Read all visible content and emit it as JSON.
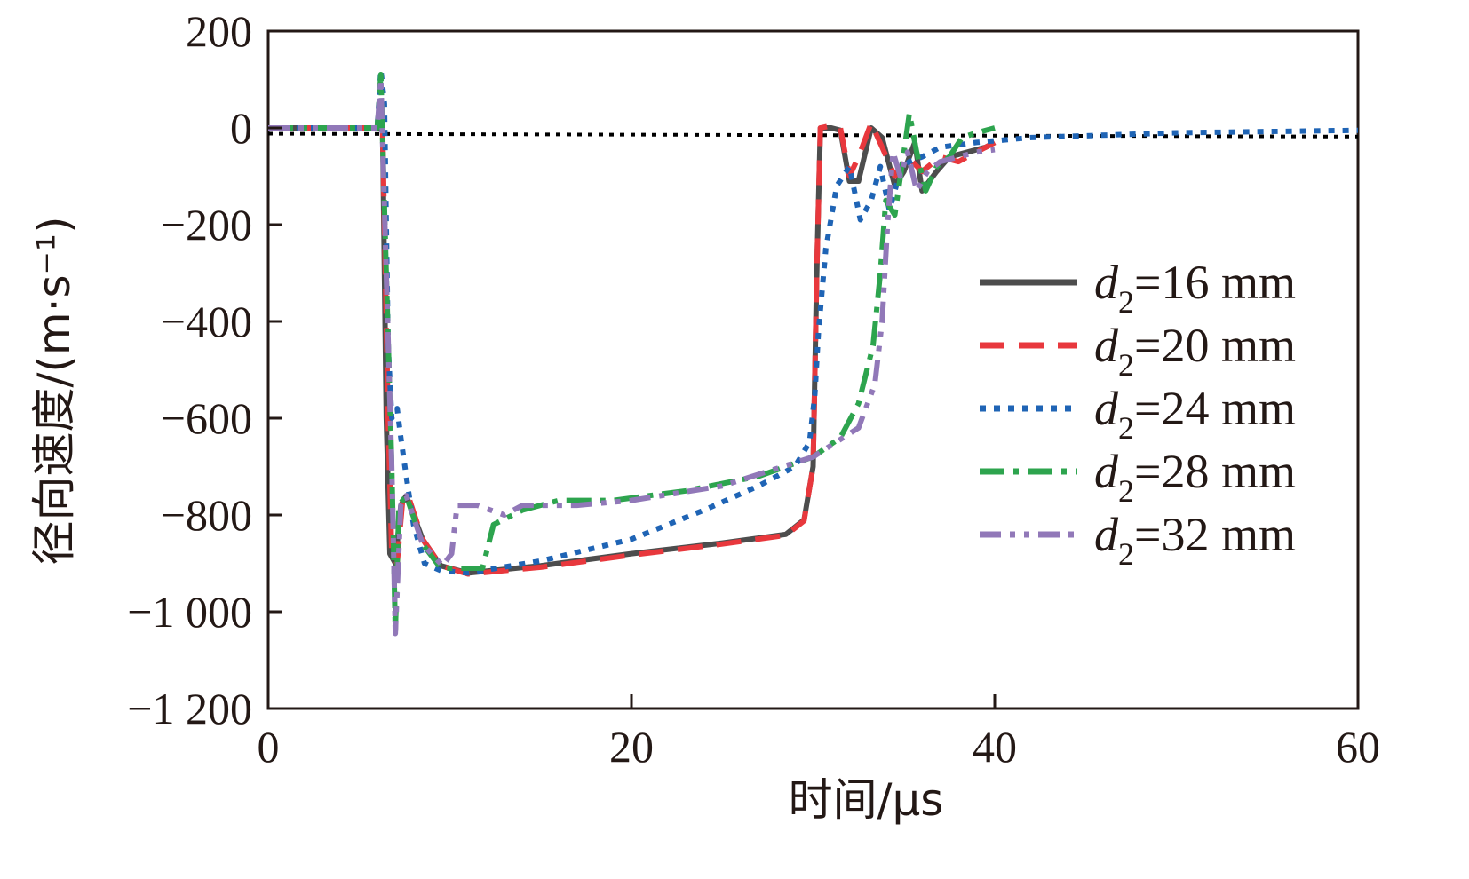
{
  "chart_data": {
    "type": "line",
    "xlabel": "时间/μs",
    "ylabel": "径向速度/(m·s⁻¹)",
    "xlim": [
      0,
      60
    ],
    "ylim": [
      -1200,
      200
    ],
    "xticks": [
      0,
      20,
      40,
      60
    ],
    "yticks": [
      200,
      0,
      -200,
      -400,
      -600,
      -800,
      -1000,
      -1200
    ],
    "xtick_labels": [
      "0",
      "20",
      "40",
      "60"
    ],
    "ytick_labels": [
      "200",
      "0",
      "−200",
      "−400",
      "−600",
      "−800",
      "−1 000",
      "−1 200"
    ],
    "grid": false,
    "legend_position": "right",
    "reference_line": {
      "style": "dotted",
      "color": "#000000",
      "y": [
        [
          0,
          -12
        ],
        [
          60,
          -18
        ]
      ]
    },
    "series": [
      {
        "name_var": "d",
        "name_sub": "2",
        "name_rest": "=16 mm",
        "color": "#4d4d4d",
        "dash": "solid",
        "points": [
          [
            0,
            0
          ],
          [
            6,
            0
          ],
          [
            6.3,
            -5
          ],
          [
            6.5,
            -600
          ],
          [
            6.7,
            -880
          ],
          [
            7,
            -900
          ],
          [
            7.3,
            -780
          ],
          [
            7.6,
            -760
          ],
          [
            8.5,
            -850
          ],
          [
            9.5,
            -905
          ],
          [
            11,
            -920
          ],
          [
            15,
            -905
          ],
          [
            20,
            -880
          ],
          [
            25,
            -858
          ],
          [
            28.5,
            -840
          ],
          [
            29.5,
            -810
          ],
          [
            30,
            -700
          ],
          [
            30.2,
            -300
          ],
          [
            30.4,
            0
          ],
          [
            31,
            0
          ],
          [
            31.5,
            -5
          ],
          [
            32,
            -110
          ],
          [
            32.5,
            -110
          ],
          [
            33.2,
            0
          ],
          [
            33.8,
            -20
          ],
          [
            34.5,
            -120
          ],
          [
            35,
            -90
          ],
          [
            35.6,
            -30
          ],
          [
            36,
            -130
          ],
          [
            36.8,
            -90
          ],
          [
            37.5,
            -60
          ],
          [
            38.5,
            -50
          ],
          [
            39.5,
            -40
          ],
          [
            40,
            -30
          ]
        ]
      },
      {
        "name_var": "d",
        "name_sub": "2",
        "name_rest": "=20 mm",
        "color": "#e8383d",
        "dash": "28,16",
        "points": [
          [
            0,
            0
          ],
          [
            6,
            0
          ],
          [
            6.3,
            -5
          ],
          [
            6.6,
            -600
          ],
          [
            6.8,
            -880
          ],
          [
            7.1,
            -900
          ],
          [
            7.4,
            -770
          ],
          [
            7.7,
            -760
          ],
          [
            8.5,
            -850
          ],
          [
            9.5,
            -905
          ],
          [
            11,
            -922
          ],
          [
            15,
            -908
          ],
          [
            20,
            -883
          ],
          [
            25,
            -860
          ],
          [
            28.5,
            -842
          ],
          [
            29.5,
            -812
          ],
          [
            30,
            -700
          ],
          [
            30.2,
            -300
          ],
          [
            30.4,
            0
          ],
          [
            31,
            5
          ],
          [
            31.5,
            0
          ],
          [
            32,
            -100
          ],
          [
            32.5,
            -60
          ],
          [
            33.2,
            10
          ],
          [
            33.8,
            -40
          ],
          [
            34.5,
            -100
          ],
          [
            35.2,
            -60
          ],
          [
            36,
            -90
          ],
          [
            37,
            -60
          ],
          [
            38,
            -70
          ],
          [
            39.5,
            -40
          ],
          [
            40,
            -30
          ]
        ]
      },
      {
        "name_var": "d",
        "name_sub": "2",
        "name_rest": "=24 mm",
        "color": "#1f64b5",
        "dash": "7,9",
        "points": [
          [
            0,
            0
          ],
          [
            6,
            0
          ],
          [
            6.2,
            120
          ],
          [
            6.4,
            50
          ],
          [
            6.6,
            -450
          ],
          [
            6.8,
            -600
          ],
          [
            7.1,
            -580
          ],
          [
            7.3,
            -640
          ],
          [
            7.6,
            -720
          ],
          [
            8,
            -820
          ],
          [
            8.6,
            -900
          ],
          [
            9.5,
            -915
          ],
          [
            11,
            -920
          ],
          [
            15,
            -895
          ],
          [
            20,
            -850
          ],
          [
            24,
            -790
          ],
          [
            27,
            -740
          ],
          [
            29,
            -700
          ],
          [
            29.8,
            -650
          ],
          [
            30.1,
            -550
          ],
          [
            30.3,
            -420
          ],
          [
            30.7,
            -250
          ],
          [
            31.3,
            -120
          ],
          [
            32,
            -80
          ],
          [
            32.6,
            -190
          ],
          [
            33.2,
            -150
          ],
          [
            33.7,
            -80
          ],
          [
            34.2,
            -170
          ],
          [
            34.8,
            -90
          ],
          [
            35.3,
            -70
          ],
          [
            36,
            -60
          ],
          [
            37,
            -40
          ],
          [
            39,
            -30
          ],
          [
            42,
            -20
          ],
          [
            50,
            -10
          ],
          [
            60,
            -5
          ]
        ]
      },
      {
        "name_var": "d",
        "name_sub": "2",
        "name_rest": "=28 mm",
        "color": "#2da44e",
        "dash": "28,10,6,10",
        "points": [
          [
            0,
            0
          ],
          [
            6,
            0
          ],
          [
            6.2,
            110
          ],
          [
            6.5,
            -300
          ],
          [
            6.8,
            -700
          ],
          [
            7,
            -1040
          ],
          [
            7.2,
            -780
          ],
          [
            7.6,
            -760
          ],
          [
            8.5,
            -860
          ],
          [
            9.5,
            -910
          ],
          [
            11.8,
            -910
          ],
          [
            12.4,
            -820
          ],
          [
            14,
            -790
          ],
          [
            16,
            -770
          ],
          [
            19,
            -770
          ],
          [
            23,
            -750
          ],
          [
            27,
            -720
          ],
          [
            30,
            -680
          ],
          [
            31.5,
            -640
          ],
          [
            32.5,
            -570
          ],
          [
            33.3,
            -450
          ],
          [
            33.7,
            -300
          ],
          [
            34,
            -150
          ],
          [
            34.5,
            -180
          ],
          [
            35,
            -50
          ],
          [
            35.3,
            30
          ],
          [
            35.7,
            -50
          ],
          [
            36.2,
            -130
          ],
          [
            36.8,
            -80
          ],
          [
            37.5,
            -60
          ],
          [
            38.2,
            -20
          ],
          [
            39,
            -10
          ],
          [
            40,
            0
          ]
        ]
      },
      {
        "name_var": "d",
        "name_sub": "2",
        "name_rest": "=32 mm",
        "color": "#9178b8",
        "dash": "24,10,6,10,6,10",
        "points": [
          [
            0,
            0
          ],
          [
            6,
            0
          ],
          [
            6.2,
            100
          ],
          [
            6.5,
            -300
          ],
          [
            6.8,
            -700
          ],
          [
            7,
            -1045
          ],
          [
            7.3,
            -780
          ],
          [
            7.6,
            -760
          ],
          [
            8.5,
            -860
          ],
          [
            9.6,
            -905
          ],
          [
            10.1,
            -880
          ],
          [
            10.4,
            -780
          ],
          [
            11.5,
            -780
          ],
          [
            13,
            -800
          ],
          [
            14,
            -780
          ],
          [
            17,
            -780
          ],
          [
            20,
            -770
          ],
          [
            25,
            -740
          ],
          [
            30,
            -680
          ],
          [
            32.5,
            -620
          ],
          [
            33.4,
            -530
          ],
          [
            33.8,
            -400
          ],
          [
            34.1,
            -200
          ],
          [
            34.4,
            -50
          ],
          [
            34.8,
            -100
          ],
          [
            35.2,
            -50
          ],
          [
            35.7,
            -130
          ],
          [
            36.3,
            -90
          ],
          [
            37,
            -70
          ],
          [
            38,
            -60
          ],
          [
            39,
            -50
          ],
          [
            40,
            -45
          ]
        ]
      }
    ]
  }
}
